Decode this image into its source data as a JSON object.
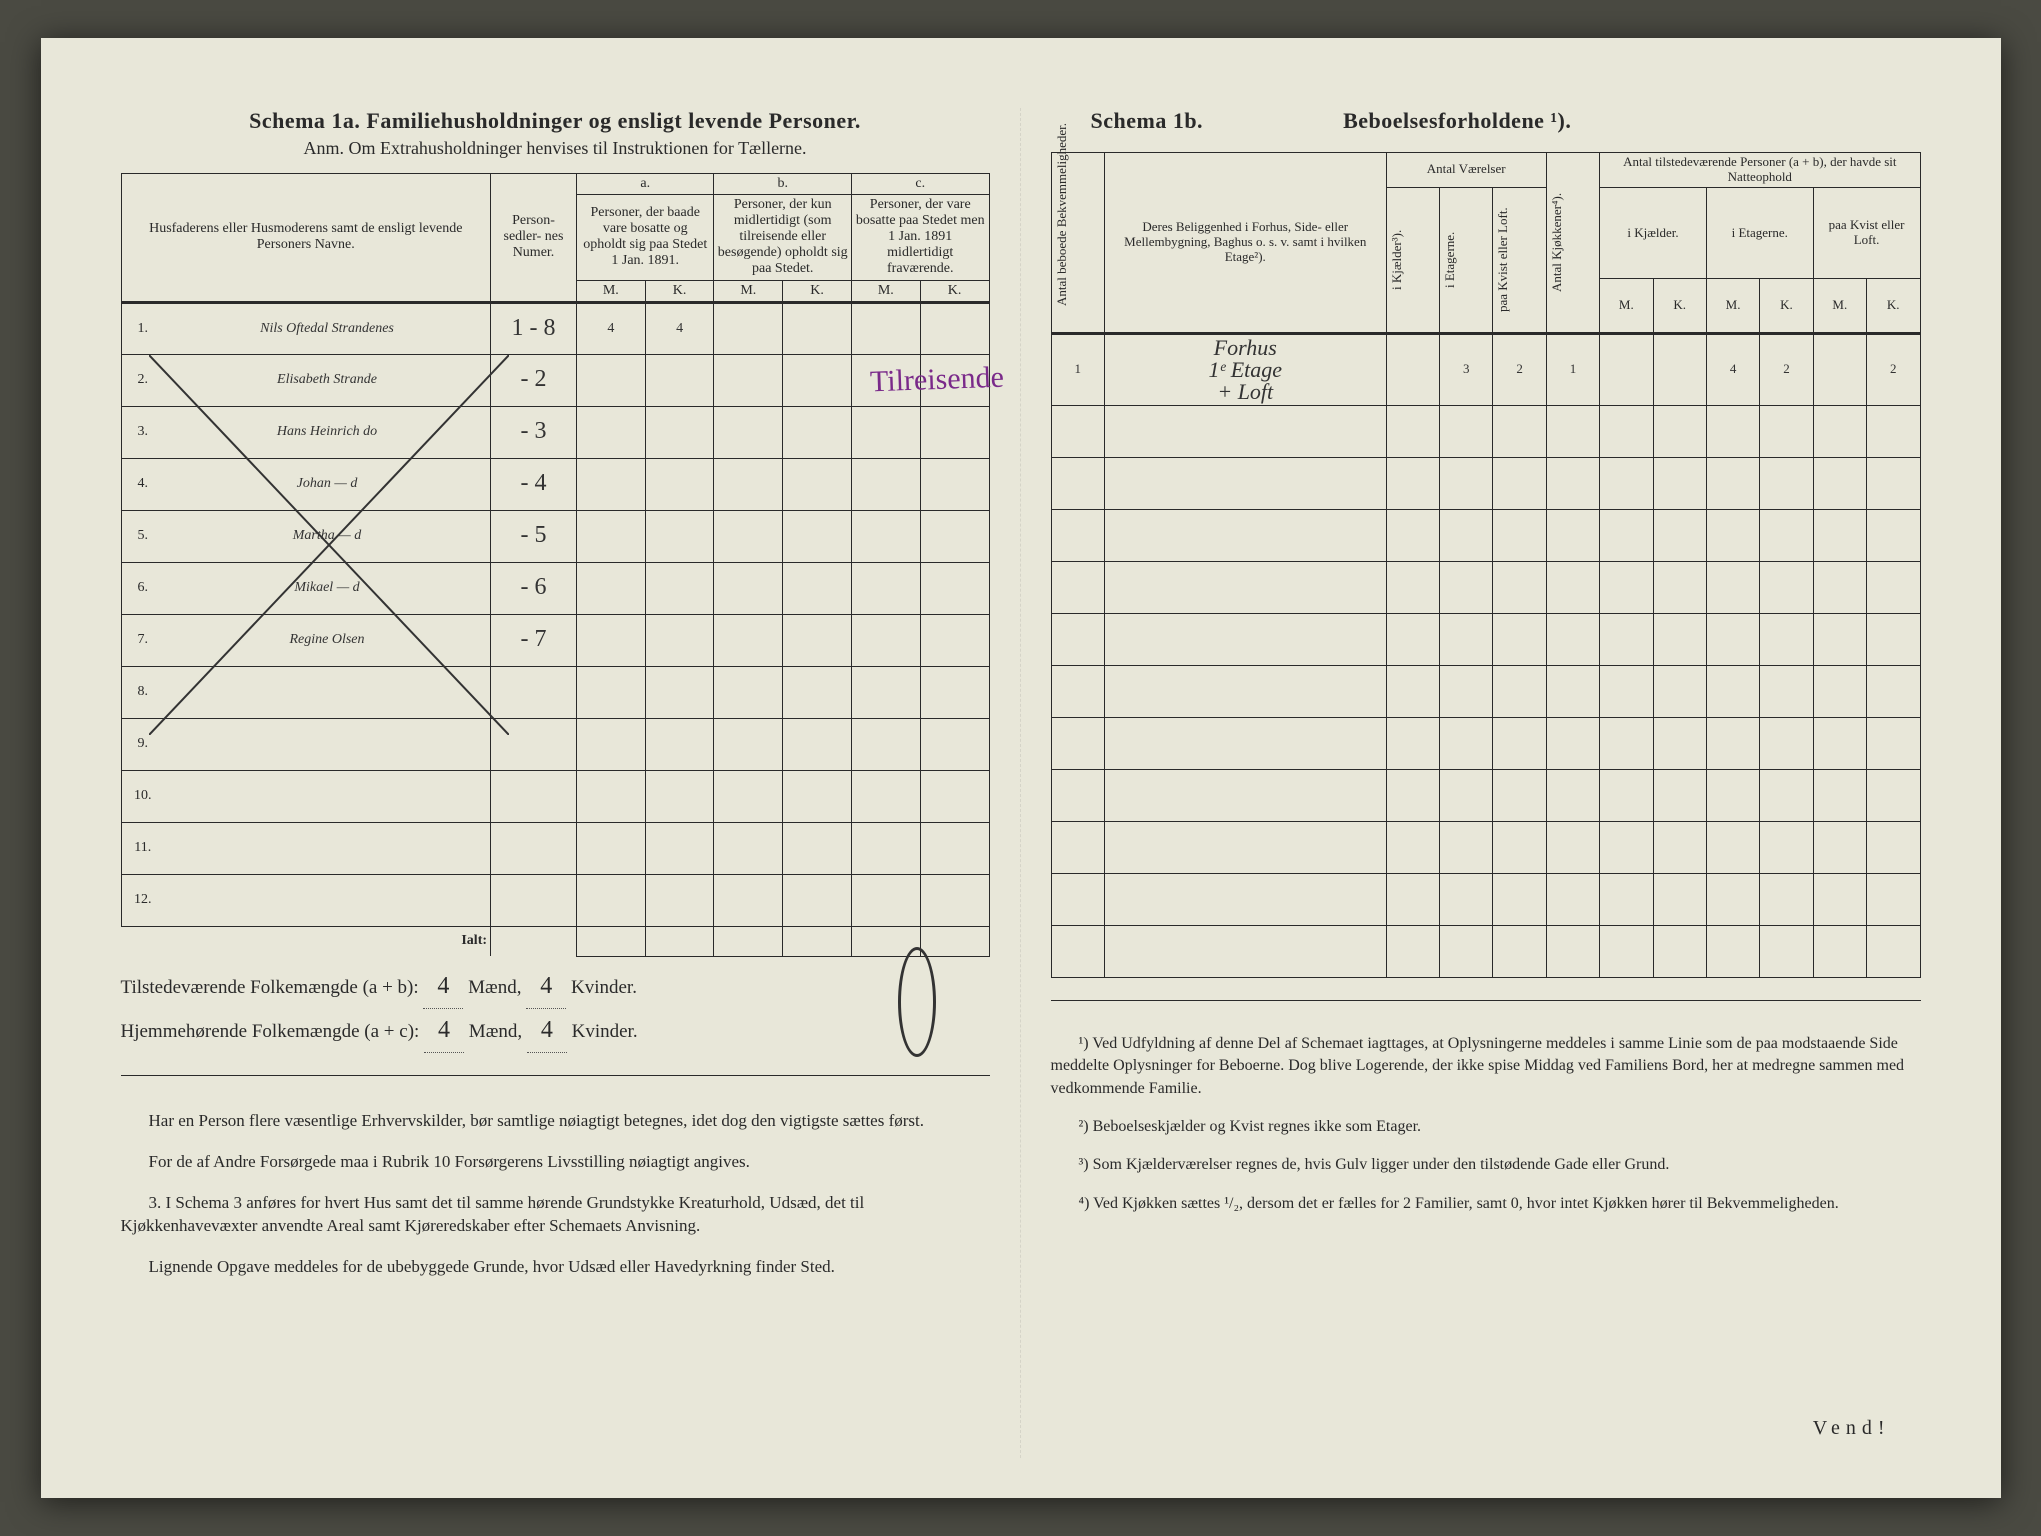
{
  "schema1a": {
    "title": "Schema 1a.  Familiehusholdninger og ensligt levende Personer.",
    "anm": "Anm.  Om Extrahusholdninger henvises til Instruktionen for Tællerne.",
    "col_names": "Husfaderens eller Husmoderens samt de ensligt levende Personers Navne.",
    "col_numer": "Person-\nsedler-\nnes\nNumer.",
    "col_a_hdr": "a.",
    "col_a": "Personer, der baade vare bosatte og opholdt sig paa Stedet 1 Jan. 1891.",
    "col_b_hdr": "b.",
    "col_b": "Personer, der kun midlertidigt (som tilreisende eller besøgende) opholdt sig paa Stedet.",
    "col_c_hdr": "c.",
    "col_c": "Personer, der vare bosatte paa Stedet men 1 Jan. 1891 midlertidigt fraværende.",
    "mk_m": "M.",
    "mk_k": "K.",
    "rows": [
      {
        "n": "1.",
        "name": "Nils Oftedal Strandenes",
        "num": "1 - 8",
        "a_m": "4",
        "a_k": "4"
      },
      {
        "n": "2.",
        "name": "Elisabeth Strande",
        "num": "- 2"
      },
      {
        "n": "3.",
        "name": "Hans Heinrich   do",
        "num": "- 3"
      },
      {
        "n": "4.",
        "name": "Johan        — d",
        "num": "- 4"
      },
      {
        "n": "5.",
        "name": "Martha      — d",
        "num": "- 5"
      },
      {
        "n": "6.",
        "name": "Mikael       — d",
        "num": "- 6"
      },
      {
        "n": "7.",
        "name": "Regine Olsen",
        "num": "- 7"
      },
      {
        "n": "8."
      },
      {
        "n": "9."
      },
      {
        "n": "10."
      },
      {
        "n": "11."
      },
      {
        "n": "12."
      }
    ],
    "ialt": "Ialt:",
    "annotation": "Tilreisende",
    "summary1_lbl": "Tilstedeværende Folkemængde (a + b): ",
    "summary2_lbl": "Hjemmehørende Folkemængde (a + c): ",
    "maend": " Mænd, ",
    "kvinder": " Kvinder.",
    "sum_m": "4",
    "sum_k": "4",
    "footnotes": [
      "Har en Person flere væsentlige Erhvervskilder, bør samtlige nøiagtigt betegnes, idet dog den vigtigste sættes først.",
      "For de af Andre Forsørgede maa i Rubrik 10 Forsørgerens Livsstilling nøiagtigt angives.",
      "3.  I Schema 3 anføres for hvert Hus samt det til samme hørende Grundstykke Kreaturhold, Udsæd, det til Kjøkkenhavevæxter anvendte Areal samt Kjøreredskaber efter Schemaets Anvisning.",
      "Lignende Opgave meddeles for de ubebyggede Grunde, hvor Udsæd eller Havedyrkning finder Sted."
    ]
  },
  "schema1b": {
    "title_l": "Schema 1b.",
    "title_r": "Beboelsesforholdene ¹).",
    "col_antal_bekv": "Antal beboede Bekvemmeligheder.",
    "col_beligg": "Deres Beliggenhed i Forhus, Side- eller Mellembygning, Baghus o. s. v. samt i hvilken Etage²).",
    "grp_vaer": "Antal Værelser",
    "col_kjaelder": "i Kjælder³).",
    "col_etag": "i Etagerne.",
    "col_kvist": "paa Kvist eller Loft.",
    "col_kjokken": "Antal Kjøkkener⁴).",
    "grp_tilst": "Antal tilstedeværende Personer (a + b), der havde sit Natteophold",
    "sub_kjael": "i Kjælder.",
    "sub_etag": "i Etagerne.",
    "sub_kvist": "paa Kvist eller Loft.",
    "mk_m": "M.",
    "mk_k": "K.",
    "rows": [
      {
        "bekv": "1",
        "beligg": "Forhus\n1ᵉ Etage\n+ Loft",
        "etag": "3",
        "kvist": "2",
        "kjok": "1",
        "em": "4",
        "ek": "2",
        "lk": "2"
      },
      {},
      {},
      {},
      {},
      {},
      {},
      {},
      {},
      {},
      {},
      {}
    ],
    "footnotes": [
      "¹) Ved Udfyldning af denne Del af Schemaet iagttages, at Oplysningerne meddeles i samme Linie som de paa modstaaende Side meddelte Oplysninger for Beboerne. Dog blive Logerende, der ikke spise Middag ved Familiens Bord, her at medregne sammen med vedkommende Familie.",
      "²) Beboelseskjælder og Kvist regnes ikke som Etager.",
      "³) Som Kjælderværelser regnes de, hvis Gulv ligger under den tilstødende Gade eller Grund.",
      "⁴) Ved Kjøkken sættes ¹/₂, dersom det er fælles for 2 Familier, samt 0, hvor intet Kjøkken hører til Bekvemmeligheden."
    ],
    "vend": "Vend!"
  },
  "style": {
    "paper_bg": "#e8e7d9",
    "ink": "#2a2a2a",
    "purple": "#7a2a8a",
    "hand_ink": "#333"
  }
}
